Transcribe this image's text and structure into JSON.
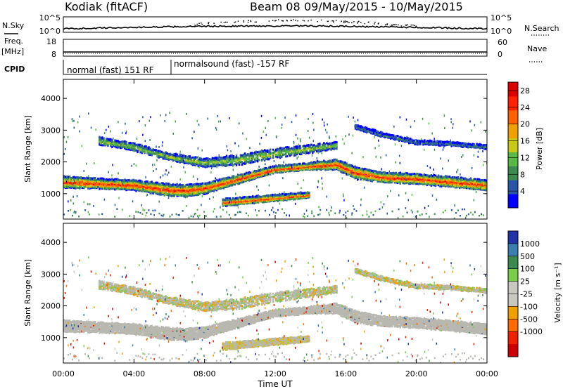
{
  "header": {
    "station": "Kodiak (fitACF)",
    "beam": "Beam 08",
    "date_range": "09/May/2015 - 10/May/2015"
  },
  "top_panels": {
    "nsky_label": "N.Sky",
    "nsky_ticks": [
      "10^5",
      "10^0"
    ],
    "nsearch_label": "N.Search",
    "nsearch_ticks": [
      "10^5",
      "10^0"
    ],
    "freq_label": "Freq.",
    "freq_unit": "[MHz]",
    "freq_ticks": [
      "18",
      "8"
    ],
    "nave_label": "Nave",
    "nave_ticks": [
      "60",
      "0"
    ],
    "cpid_label": "CPID",
    "cpid_segments": [
      {
        "label": "normal (fast) 151 RF",
        "start_hour": 0
      },
      {
        "label": "normalsound (fast) -157 RF",
        "start_hour": 6.1
      }
    ]
  },
  "colors": {
    "power_scale": [
      "#0000ff",
      "#2a56a8",
      "#3c8a50",
      "#58b846",
      "#c8c819",
      "#f0a000",
      "#ff6000",
      "#ff2200",
      "#dd0000"
    ],
    "velocity_scale": [
      "#2233aa",
      "#3a7fb0",
      "#3c8a50",
      "#7bcc4a",
      "#c8c8c0",
      "#c8c8c0",
      "#f0a000",
      "#ff6a00",
      "#ee2200",
      "#cc0000"
    ],
    "ground_scatter": "#b8b8b0"
  },
  "chart_data": [
    {
      "type": "heatmap",
      "name": "power",
      "ylabel": "Slant Range [km]",
      "yticks": [
        1000,
        2000,
        3000,
        4000
      ],
      "ylim": [
        200,
        4600
      ],
      "xlim": [
        0,
        24
      ],
      "colorbar_label": "Power [dB]",
      "colorbar_ticks": [
        4,
        8,
        12,
        16,
        20,
        24,
        28
      ],
      "colorbar_range": [
        0,
        30
      ],
      "echo_bands": [
        {
          "hours": [
            0,
            2,
            4,
            6,
            7,
            8,
            10,
            12,
            14,
            15.5,
            16.5,
            18,
            20,
            22,
            24
          ],
          "range_km": [
            1400,
            1350,
            1300,
            1150,
            1130,
            1200,
            1500,
            1800,
            1900,
            1950,
            1700,
            1550,
            1500,
            1400,
            1300
          ],
          "width_km": [
            350,
            300,
            300,
            350,
            350,
            320,
            250,
            200,
            200,
            300,
            350,
            300,
            300,
            300,
            300
          ],
          "peak_db": 26
        },
        {
          "hours": [
            9,
            10,
            11,
            12,
            13,
            14
          ],
          "range_km": [
            750,
            800,
            850,
            900,
            950,
            1000
          ],
          "width_km": [
            220,
            200,
            200,
            180,
            180,
            150
          ],
          "peak_db": 25
        },
        {
          "hours": [
            2,
            4,
            6,
            8,
            10,
            12,
            14,
            15.5
          ],
          "range_km": [
            2700,
            2500,
            2200,
            2000,
            2100,
            2300,
            2450,
            2550
          ],
          "width_km": [
            220,
            220,
            200,
            250,
            300,
            300,
            250,
            200
          ],
          "peak_db": 14
        },
        {
          "hours": [
            16.5,
            18,
            20,
            22,
            24
          ],
          "range_km": [
            3150,
            2900,
            2650,
            2600,
            2500
          ],
          "width_km": [
            120,
            120,
            120,
            110,
            110
          ],
          "peak_db": 8
        }
      ]
    },
    {
      "type": "heatmap",
      "name": "velocity",
      "ylabel": "Slant Range [km]",
      "yticks": [
        1000,
        2000,
        3000,
        4000
      ],
      "ylim": [
        200,
        4600
      ],
      "xlim": [
        0,
        24
      ],
      "xlabel": "Time UT",
      "xticks": [
        "00:00",
        "04:00",
        "08:00",
        "12:00",
        "16:00",
        "20:00",
        "00:00"
      ],
      "colorbar_label": "Velocity [m s⁻¹]",
      "colorbar_ticks": [
        "1000",
        "500",
        "100",
        "25",
        "-25",
        "-100",
        "-500",
        "-1000"
      ]
    }
  ]
}
